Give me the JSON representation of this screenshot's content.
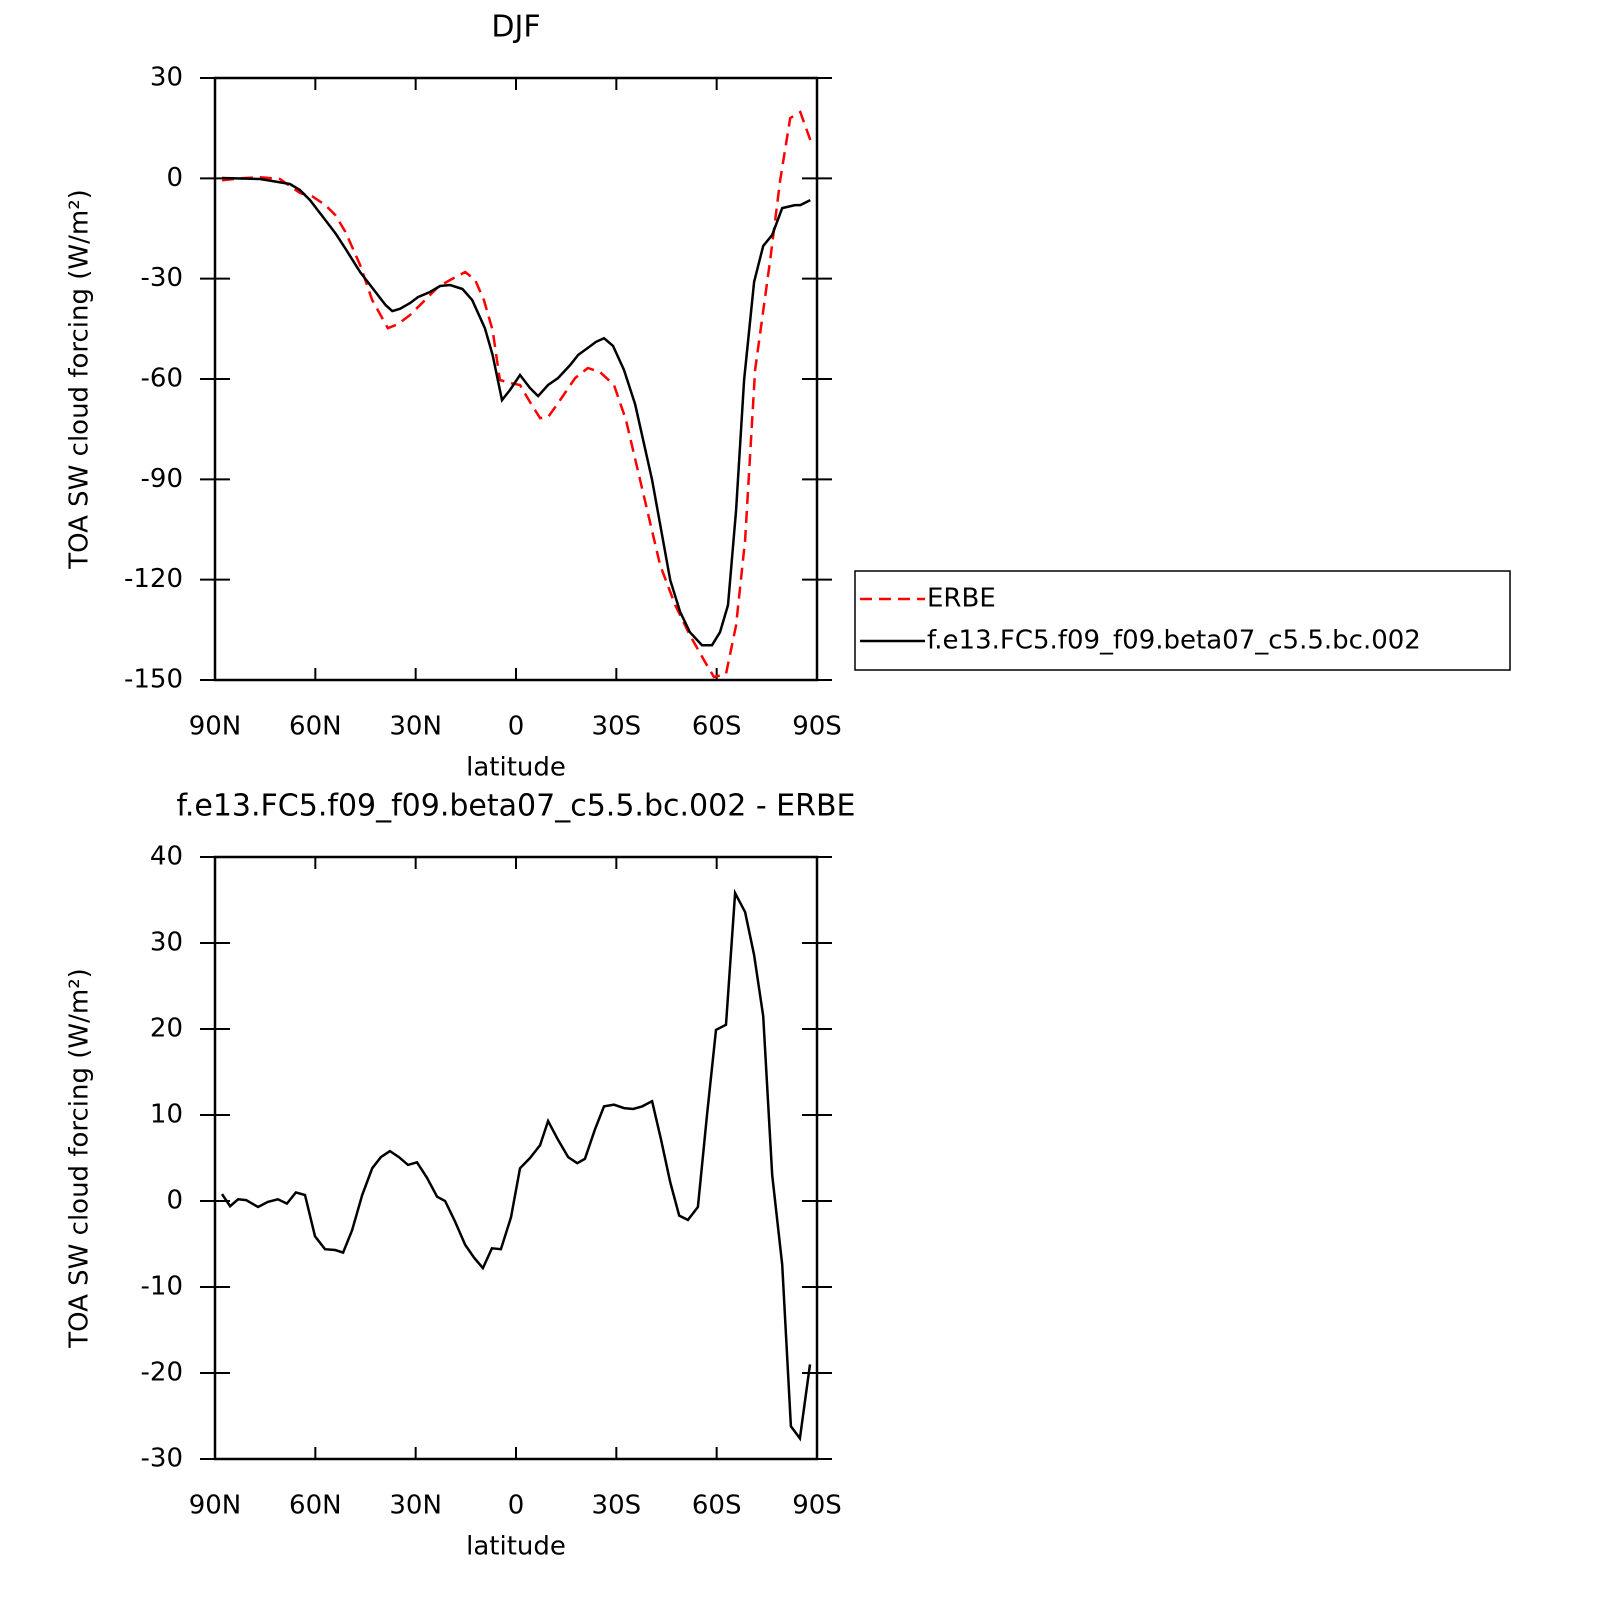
{
  "chart_data": [
    {
      "type": "line",
      "title": "DJF",
      "xlabel": "latitude",
      "ylabel": "TOA SW cloud forcing (W/m²)",
      "xlim": [
        90,
        -90
      ],
      "xticks": [
        {
          "value": 90,
          "label": "90N"
        },
        {
          "value": 60,
          "label": "60N"
        },
        {
          "value": 30,
          "label": "30N"
        },
        0,
        {
          "value": -30,
          "label": "30S"
        },
        {
          "value": -60,
          "label": "60S"
        },
        {
          "value": -90,
          "label": "90S"
        }
      ],
      "ylim": [
        -150,
        30
      ],
      "yticks": [
        -150,
        -120,
        -90,
        -60,
        -30,
        0,
        30
      ],
      "legend": "right",
      "series": [
        {
          "name": "ERBE",
          "color": "#ff0000",
          "dash": true,
          "x": [
            87.9,
            82.5,
            76.5,
            70.6,
            64.6,
            61,
            57,
            54,
            51,
            46.6,
            43,
            38.3,
            35.3,
            31.7,
            27.2,
            23.3,
            19.7,
            15.2,
            12.2,
            9.6,
            7,
            4.8,
            1.8,
            -1.2,
            -4.2,
            -7.2,
            -9.6,
            -13.2,
            -17.7,
            -21.5,
            -25.1,
            -29.3,
            -32.9,
            -37.1,
            -43.1,
            -47.6,
            -52,
            -56.5,
            -59.2,
            -62.8,
            -65.8,
            -68.5,
            -71.5,
            -76,
            -79,
            -82,
            -85,
            -88
          ],
          "values": [
            -0.6,
            0,
            0.3,
            -0.2,
            -4.4,
            -5.3,
            -8,
            -11,
            -16,
            -25.9,
            -36.4,
            -44.8,
            -43.6,
            -40.9,
            -36.4,
            -32.5,
            -30.4,
            -28,
            -30.4,
            -36.4,
            -45.4,
            -60.3,
            -61.2,
            -61.8,
            -66.9,
            -71.7,
            -71.4,
            -66.3,
            -59.7,
            -56.7,
            -57.9,
            -61.8,
            -72.3,
            -90.2,
            -115.6,
            -127.6,
            -136.6,
            -144.6,
            -149.1,
            -148.2,
            -133.6,
            -108.2,
            -57.3,
            -24.4,
            -0.5,
            18,
            19.8,
            11.5
          ]
        },
        {
          "name": "f.e13.FC5.f09_f09.beta07_c5.5.bc.002",
          "color": "#000000",
          "dash": false,
          "x": [
            87.9,
            76.5,
            67.6,
            64.6,
            61.6,
            57,
            54,
            51,
            46.6,
            42,
            39,
            37,
            34.7,
            31.7,
            29.3,
            25.7,
            22.7,
            19.7,
            16,
            13.1,
            9.3,
            7,
            4.2,
            1.8,
            -1.2,
            -4.2,
            -6.6,
            -9.6,
            -12.6,
            -16.2,
            -18.6,
            -21.5,
            -23.9,
            -26.3,
            -29,
            -32.3,
            -35.6,
            -40.7,
            -46.1,
            -49.1,
            -52,
            -55.6,
            -58.6,
            -61,
            -63.4,
            -65.8,
            -68.2,
            -71.2,
            -73.9,
            -76.6,
            -79.6,
            -83.4,
            -85,
            -88
          ],
          "values": [
            0.1,
            -0.2,
            -1.7,
            -3.5,
            -6.5,
            -12.5,
            -16.4,
            -21,
            -28,
            -34,
            -37.9,
            -39.7,
            -39,
            -37.3,
            -35.5,
            -34,
            -32.2,
            -31.9,
            -33.1,
            -36.4,
            -44.8,
            -52.8,
            -66.3,
            -63.3,
            -58.8,
            -62.7,
            -65.1,
            -61.8,
            -59.7,
            -55.8,
            -52.8,
            -50.7,
            -48.9,
            -47.8,
            -50.1,
            -57.3,
            -67.5,
            -90.2,
            -120.1,
            -129.7,
            -135.7,
            -139.6,
            -139.6,
            -135.7,
            -127.6,
            -99.2,
            -60.3,
            -31,
            -20.2,
            -16.9,
            -8.9,
            -8,
            -8,
            -6.5
          ]
        }
      ]
    },
    {
      "type": "line",
      "title": "f.e13.FC5.f09_f09.beta07_c5.5.bc.002 - ERBE",
      "xlabel": "latitude",
      "ylabel": "TOA SW cloud forcing (W/m²)",
      "xlim": [
        90,
        -90
      ],
      "xticks": [
        {
          "value": 90,
          "label": "90N"
        },
        {
          "value": 60,
          "label": "60N"
        },
        {
          "value": 30,
          "label": "30N"
        },
        0,
        {
          "value": -30,
          "label": "30S"
        },
        {
          "value": -60,
          "label": "60S"
        },
        {
          "value": -90,
          "label": "90S"
        }
      ],
      "ylim": [
        -30,
        40
      ],
      "yticks": [
        -30,
        -20,
        -10,
        0,
        10,
        20,
        30,
        40
      ],
      "series": [
        {
          "color": "#000000",
          "dash": false,
          "x": [
            87.9,
            85.5,
            83.1,
            80.7,
            77.1,
            74.2,
            71.2,
            68.5,
            65.8,
            63.1,
            60.1,
            57.1,
            54.1,
            51.7,
            49,
            46,
            43,
            40.4,
            37.7,
            35,
            32.3,
            29.6,
            26.6,
            23.6,
            21.2,
            18.2,
            15.2,
            12.5,
            9.9,
            7.2,
            4.5,
            1.5,
            -1.2,
            -4.2,
            -7.2,
            -9.6,
            -12.6,
            -15.6,
            -18.3,
            -20.6,
            -23.6,
            -26.3,
            -29.3,
            -32.3,
            -35,
            -37.7,
            -40.7,
            -43.4,
            -46.1,
            -48.8,
            -51.4,
            -54.4,
            -57.1,
            -59.8,
            -62.8,
            -65.5,
            -68.5,
            -71.2,
            -73.9,
            -76.6,
            -79.6,
            -82.2,
            -84.9,
            -87.9
          ],
          "values": [
            0.8,
            -0.6,
            0.2,
            0.1,
            -0.7,
            -0.1,
            0.2,
            -0.3,
            1.0,
            0.7,
            -4.1,
            -5.6,
            -5.7,
            -6.0,
            -3.4,
            0.7,
            3.8,
            5.1,
            5.8,
            5.1,
            4.2,
            4.5,
            2.7,
            0.5,
            0,
            -2.4,
            -5.1,
            -6.6,
            -7.8,
            -5.5,
            -5.6,
            -1.9,
            3.8,
            5.0,
            6.5,
            9.3,
            7.1,
            5.1,
            4.4,
            4.9,
            8.3,
            11.0,
            11.2,
            10.8,
            10.7,
            11.0,
            11.6,
            7.1,
            2.2,
            -1.7,
            -2.2,
            -0.7,
            10.0,
            19.9,
            20.5,
            35.8,
            33.6,
            28.6,
            21.5,
            3.0,
            -7.4,
            -26.2,
            -27.6,
            -19.0
          ]
        }
      ]
    }
  ]
}
